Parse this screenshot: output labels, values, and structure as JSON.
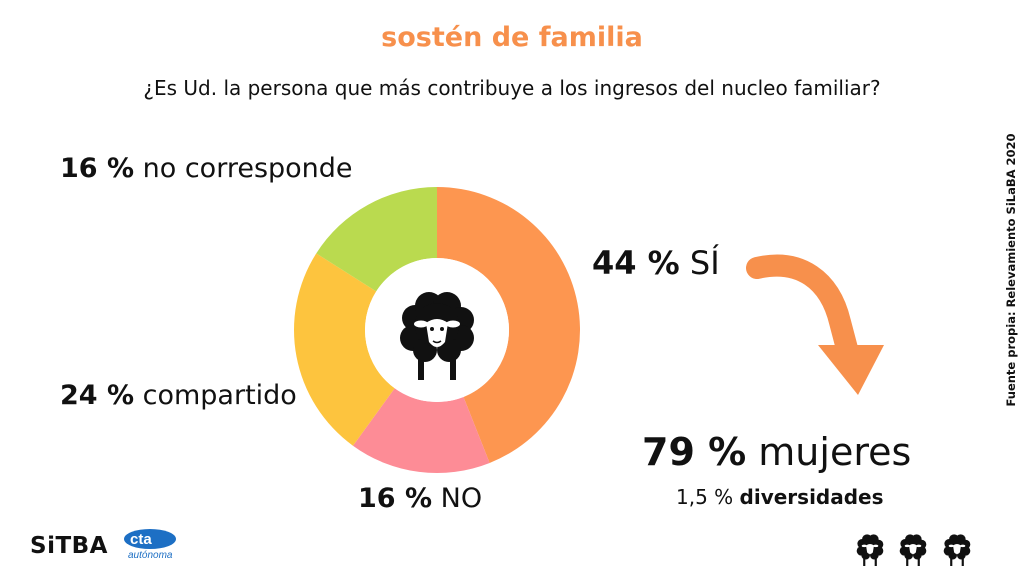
{
  "title": "sostén de familia",
  "question": "¿Es Ud. la persona que más contribuye a los ingresos del nucleo familiar?",
  "labels": {
    "no_corresponde": {
      "pct": "16 %",
      "text": "no corresponde"
    },
    "si": {
      "pct": "44 %",
      "text": "SÍ"
    },
    "compartido": {
      "pct": "24 %",
      "text": "compartido"
    },
    "no": {
      "pct": "16 %",
      "text": "NO"
    }
  },
  "callout": {
    "mujeres_pct": "79 %",
    "mujeres_text": "mujeres",
    "diversidades_pct": "1,5 %",
    "diversidades_text": "diversidades"
  },
  "source": "Fuente propia: Relevamiento SiLaBA 2020",
  "logos": {
    "sitba": "SiTBA",
    "cta_main": "cta",
    "cta_sub": "autónoma"
  },
  "icons": [
    "sheep-icon",
    "arrow-curved-icon"
  ],
  "colors": {
    "title": "#f7904c",
    "arrow": "#f7904c"
  },
  "chart_data": {
    "type": "pie",
    "donut": true,
    "start": "top, clockwise",
    "title": "sostén de familia",
    "slices": [
      {
        "name": "SÍ",
        "value": 44,
        "color": "#fd9650"
      },
      {
        "name": "NO",
        "value": 16,
        "color": "#fd8c96"
      },
      {
        "name": "compartido",
        "value": 24,
        "color": "#fdc43e"
      },
      {
        "name": "no corresponde",
        "value": 16,
        "color": "#bada4f"
      }
    ]
  }
}
